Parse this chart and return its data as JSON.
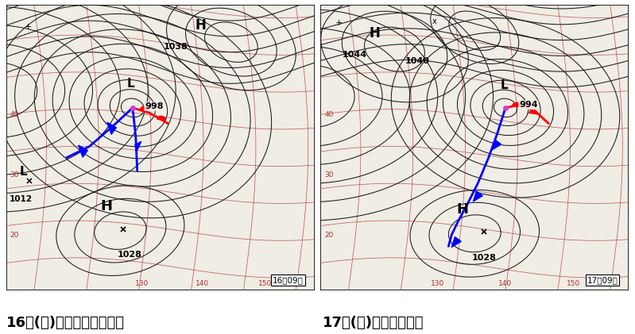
{
  "left_caption": "16日(木)九州北部で春一番",
  "right_caption": "17日(金)各地で春一番",
  "left_time": "16日09時",
  "right_time": "17日09時",
  "bg_color": "#ffffff",
  "map_bg": "#f0ede5",
  "isobar_color": "#1a1a1a",
  "red_line_color": "#b03030",
  "caption_fontsize": 13,
  "label_fontsize": 7
}
